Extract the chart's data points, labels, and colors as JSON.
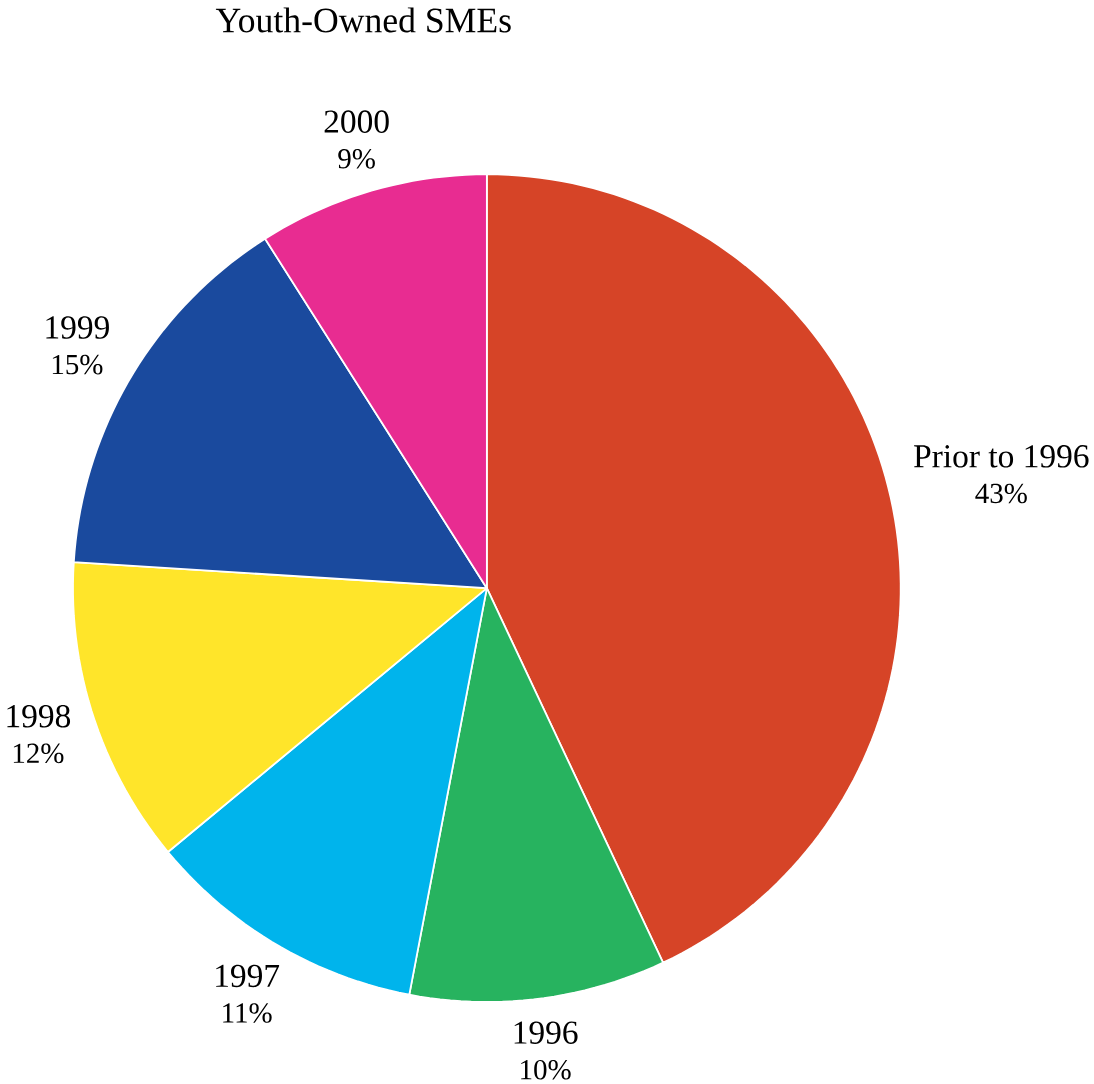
{
  "chart_data": {
    "type": "pie",
    "title": "Youth-Owned SMEs",
    "categories": [
      "Prior to 1996",
      "1996",
      "1997",
      "1998",
      "1999",
      "2000"
    ],
    "values": [
      43,
      10,
      11,
      12,
      15,
      9
    ],
    "value_labels": [
      "43%",
      "10%",
      "11%",
      "12%",
      "15%",
      "9%"
    ],
    "colors": [
      "#d64427",
      "#27b35f",
      "#00b4ec",
      "#ffe52a",
      "#1a4a9e",
      "#e82c91"
    ]
  }
}
